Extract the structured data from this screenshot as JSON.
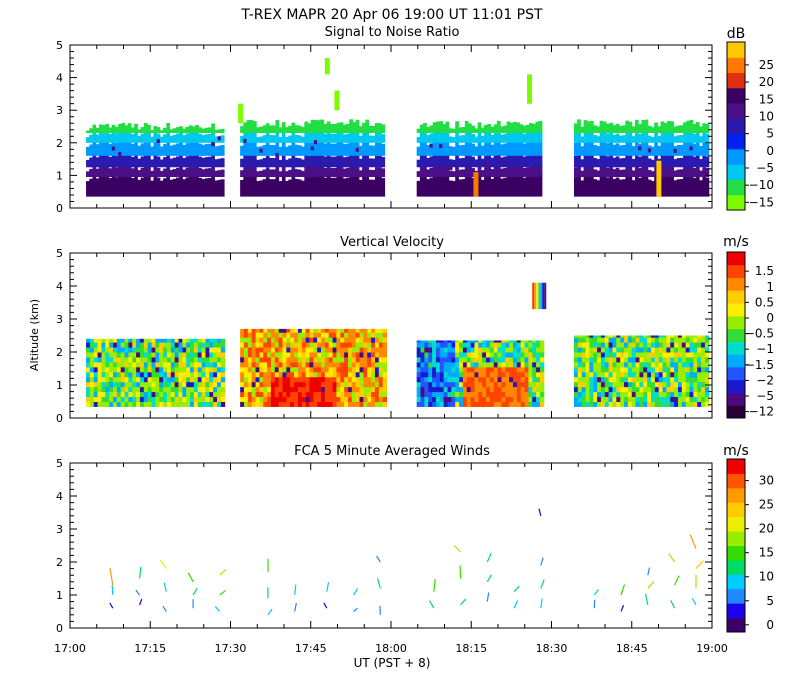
{
  "header": {
    "title": "T-REX  MAPR 20 Apr 06  19:00 UT  11:01  PST"
  },
  "x_axis": {
    "label": "UT  (PST + 8)",
    "range_hours": [
      17.0,
      19.0
    ],
    "tick_labels": [
      "17:00",
      "17:15",
      "17:30",
      "17:45",
      "18:00",
      "18:15",
      "18:30",
      "18:45",
      "19:00"
    ],
    "minor_tick_minutes": 5
  },
  "y_axis": {
    "label": "Altitude (km)",
    "range_km": [
      0,
      5
    ],
    "tick_labels": [
      "0",
      "1",
      "2",
      "3",
      "4",
      "5"
    ],
    "minor_tick_km": 0.2
  },
  "data_gaps_hours": [
    [
      17.483,
      17.533
    ],
    [
      17.983,
      18.083
    ],
    [
      18.467,
      18.567
    ]
  ],
  "panels": [
    {
      "id": "snr",
      "title": "Signal to Noise Ratio",
      "unit": "dB",
      "colorbar_labels": [
        "25",
        "20",
        "15",
        "10",
        "5",
        "0",
        "−5",
        "−10",
        "−15"
      ],
      "colors": [
        "#7cfc00",
        "#22dd44",
        "#00c8ee",
        "#0099ff",
        "#0022ee",
        "#2a1ab0",
        "#4b0f87",
        "#3a0062",
        "#e03010",
        "#ff7800",
        "#ffc800"
      ]
    },
    {
      "id": "vv",
      "title": "Vertical Velocity",
      "unit": "m/s",
      "colorbar_labels": [
        "1.5",
        "1",
        "0.5",
        "0",
        "−0.5",
        "−1",
        "−1.5",
        "−2",
        "−5",
        "−12"
      ],
      "colors": [
        "#2a0038",
        "#4b0a80",
        "#1a1acc",
        "#2255ff",
        "#00aaff",
        "#00ddcc",
        "#33dd33",
        "#99ee00",
        "#ffee00",
        "#ffcc00",
        "#ff8800",
        "#ff4400",
        "#ee0000"
      ]
    },
    {
      "id": "winds",
      "title": "FCA 5 Minute Averaged Winds",
      "unit": "m/s",
      "colorbar_labels": [
        "30",
        "25",
        "20",
        "15",
        "10",
        "5",
        "0"
      ],
      "colors": [
        "#3a006a",
        "#1f00ee",
        "#1f88ff",
        "#00ccff",
        "#00dd66",
        "#33dd00",
        "#99ee00",
        "#eeee00",
        "#ffcc00",
        "#ff9900",
        "#ff5500",
        "#ee0000"
      ]
    }
  ],
  "chart_data": [
    {
      "type": "heatmap",
      "title": "Signal to Noise Ratio",
      "unit": "dB",
      "xlim": [
        "17:00",
        "19:00"
      ],
      "ylim": [
        0,
        5
      ],
      "colorbar_range": [
        -15,
        25
      ],
      "colorbar_ticks": [
        25,
        20,
        15,
        10,
        5,
        0,
        -5,
        -10,
        -15
      ],
      "data_segments_hours": [
        [
          17.05,
          17.48
        ],
        [
          17.53,
          17.98
        ],
        [
          18.08,
          18.47
        ],
        [
          18.57,
          18.99
        ]
      ],
      "profile_top_km": [
        2.5,
        2.6,
        2.55,
        2.6
      ],
      "profile_bottom_km": 0.35,
      "bands": [
        {
          "from_km": 0.35,
          "to_km": 0.95,
          "snr_db": 12
        },
        {
          "from_km": 0.95,
          "to_km": 1.25,
          "snr_db": 8
        },
        {
          "from_km": 1.25,
          "to_km": 1.6,
          "snr_db": 3
        },
        {
          "from_km": 1.6,
          "to_km": 2.0,
          "snr_db": -6
        },
        {
          "from_km": 2.0,
          "to_km": 2.3,
          "snr_db": -10
        },
        {
          "from_km": 2.3,
          "to_km": 2.6,
          "snr_db": -14
        }
      ],
      "hotspots": [
        {
          "x_hours": 18.263,
          "from_km": 0.35,
          "to_km": 1.1,
          "snr_db": 20
        },
        {
          "x_hours": 18.833,
          "from_km": 0.35,
          "to_km": 1.45,
          "snr_db": 22
        }
      ]
    },
    {
      "type": "heatmap",
      "title": "Vertical Velocity",
      "unit": "m/s",
      "xlim": [
        "17:00",
        "19:00"
      ],
      "ylim": [
        0,
        5
      ],
      "colorbar_ticks": [
        1.5,
        1,
        0.5,
        0,
        -0.5,
        -1,
        -1.5,
        -2,
        -5,
        -12
      ],
      "data_segments_hours": [
        [
          17.05,
          17.48
        ],
        [
          17.53,
          17.98
        ],
        [
          18.08,
          18.47
        ],
        [
          18.57,
          18.99
        ]
      ],
      "profile_top_km": [
        2.4,
        2.7,
        2.35,
        2.5
      ],
      "profile_bottom_km": 0.35,
      "regions": [
        {
          "from_hours": 17.53,
          "to_hours": 17.98,
          "dominant_m_s": 0.5
        },
        {
          "from_hours": 17.62,
          "to_hours": 17.82,
          "from_km": 0.35,
          "to_km": 1.2,
          "dominant_m_s": 1.5
        },
        {
          "from_hours": 18.08,
          "to_hours": 18.2,
          "dominant_m_s": -1.5
        },
        {
          "from_hours": 18.22,
          "to_hours": 18.42,
          "from_km": 0.35,
          "to_km": 1.4,
          "dominant_m_s": 1.0
        }
      ]
    },
    {
      "type": "scatter",
      "title": "FCA 5 Minute Averaged Winds",
      "unit": "m/s",
      "xlim": [
        "17:00",
        "19:00"
      ],
      "ylim": [
        0,
        5
      ],
      "colorbar_range": [
        0,
        30
      ],
      "colorbar_ticks": [
        30,
        25,
        20,
        15,
        10,
        5,
        0
      ],
      "profiles": [
        {
          "time": "17:08",
          "samples": [
            {
              "alt_km": 0.6,
              "speed": 4
            },
            {
              "alt_km": 1.0,
              "speed": 8
            },
            {
              "alt_km": 1.3,
              "speed": 24
            }
          ]
        },
        {
          "time": "17:13",
          "samples": [
            {
              "alt_km": 0.7,
              "speed": 3
            },
            {
              "alt_km": 1.0,
              "speed": 6
            },
            {
              "alt_km": 1.5,
              "speed": 12
            }
          ]
        },
        {
          "time": "17:18",
          "samples": [
            {
              "alt_km": 0.5,
              "speed": 5
            },
            {
              "alt_km": 1.1,
              "speed": 8
            },
            {
              "alt_km": 1.8,
              "speed": 18
            }
          ]
        },
        {
          "time": "17:23",
          "samples": [
            {
              "alt_km": 0.6,
              "speed": 6
            },
            {
              "alt_km": 1.0,
              "speed": 10
            },
            {
              "alt_km": 1.4,
              "speed": 14
            }
          ]
        },
        {
          "time": "17:28",
          "samples": [
            {
              "alt_km": 0.5,
              "speed": 9
            },
            {
              "alt_km": 1.0,
              "speed": 13
            },
            {
              "alt_km": 1.6,
              "speed": 16
            }
          ]
        },
        {
          "time": "17:37",
          "samples": [
            {
              "alt_km": 0.4,
              "speed": 8
            },
            {
              "alt_km": 0.9,
              "speed": 10
            },
            {
              "alt_km": 1.7,
              "speed": 14
            }
          ]
        },
        {
          "time": "17:42",
          "samples": [
            {
              "alt_km": 0.5,
              "speed": 6
            },
            {
              "alt_km": 1.0,
              "speed": 9
            }
          ]
        },
        {
          "time": "17:48",
          "samples": [
            {
              "alt_km": 0.6,
              "speed": 4
            },
            {
              "alt_km": 1.1,
              "speed": 8
            }
          ]
        },
        {
          "time": "17:53",
          "samples": [
            {
              "alt_km": 0.5,
              "speed": 5
            },
            {
              "alt_km": 1.0,
              "speed": 9
            }
          ]
        },
        {
          "time": "17:58",
          "samples": [
            {
              "alt_km": 0.4,
              "speed": 6
            },
            {
              "alt_km": 1.2,
              "speed": 11
            },
            {
              "alt_km": 2.0,
              "speed": 7
            }
          ]
        },
        {
          "time": "18:08",
          "samples": [
            {
              "alt_km": 0.6,
              "speed": 11
            },
            {
              "alt_km": 1.1,
              "speed": 14
            }
          ]
        },
        {
          "time": "18:13",
          "samples": [
            {
              "alt_km": 0.7,
              "speed": 12
            },
            {
              "alt_km": 1.5,
              "speed": 14
            },
            {
              "alt_km": 2.3,
              "speed": 16
            }
          ]
        },
        {
          "time": "18:18",
          "samples": [
            {
              "alt_km": 0.8,
              "speed": 7
            },
            {
              "alt_km": 1.4,
              "speed": 10
            },
            {
              "alt_km": 2.0,
              "speed": 12
            }
          ]
        },
        {
          "time": "18:23",
          "samples": [
            {
              "alt_km": 0.6,
              "speed": 9
            },
            {
              "alt_km": 1.1,
              "speed": 12
            }
          ]
        },
        {
          "time": "18:28",
          "samples": [
            {
              "alt_km": 0.6,
              "speed": 8
            },
            {
              "alt_km": 1.2,
              "speed": 10
            },
            {
              "alt_km": 1.9,
              "speed": 6
            },
            {
              "alt_km": 3.4,
              "speed": 4
            }
          ]
        },
        {
          "time": "18:38",
          "samples": [
            {
              "alt_km": 0.6,
              "speed": 5
            },
            {
              "alt_km": 1.0,
              "speed": 8
            }
          ]
        },
        {
          "time": "18:43",
          "samples": [
            {
              "alt_km": 0.5,
              "speed": 4
            },
            {
              "alt_km": 1.0,
              "speed": 13
            }
          ]
        },
        {
          "time": "18:48",
          "samples": [
            {
              "alt_km": 0.7,
              "speed": 12
            },
            {
              "alt_km": 1.2,
              "speed": 16
            },
            {
              "alt_km": 1.6,
              "speed": 5
            }
          ]
        },
        {
          "time": "18:53",
          "samples": [
            {
              "alt_km": 0.6,
              "speed": 10
            },
            {
              "alt_km": 1.3,
              "speed": 14
            },
            {
              "alt_km": 2.0,
              "speed": 17
            }
          ]
        },
        {
          "time": "18:57",
          "samples": [
            {
              "alt_km": 0.7,
              "speed": 8
            },
            {
              "alt_km": 1.2,
              "speed": 15
            },
            {
              "alt_km": 1.8,
              "speed": 22
            },
            {
              "alt_km": 2.4,
              "speed": 24
            }
          ]
        }
      ]
    }
  ]
}
